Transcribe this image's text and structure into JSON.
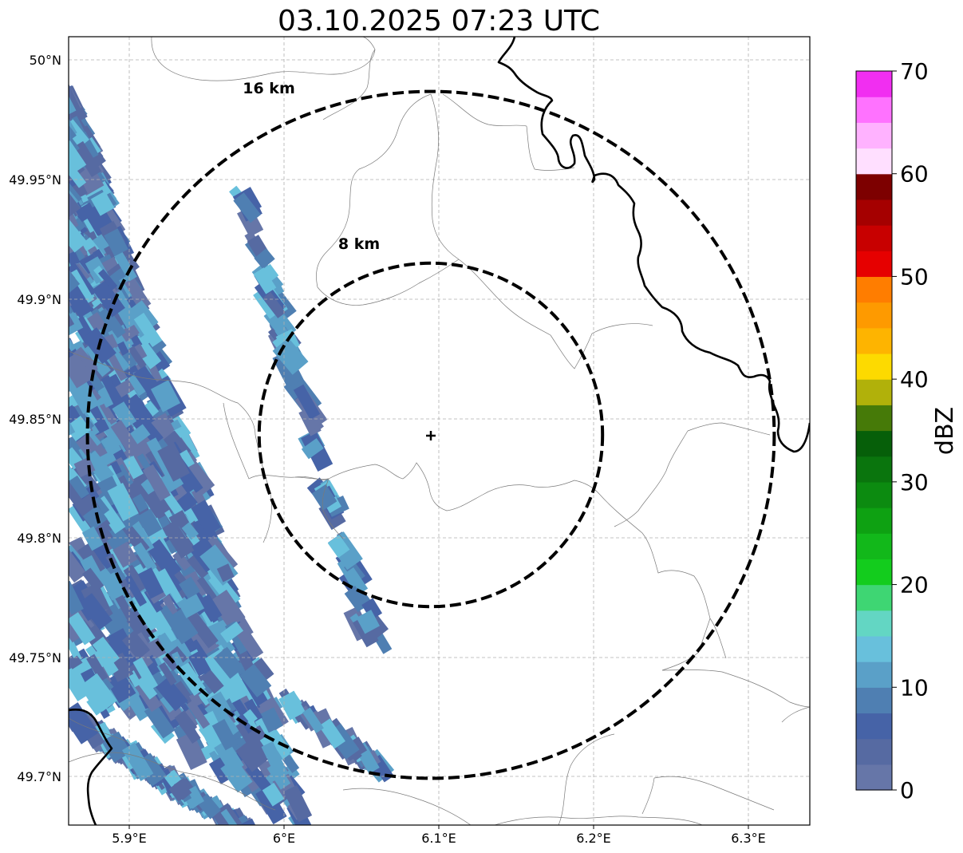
{
  "map": {
    "title": "03.10.2025 07:23 UTC",
    "lon_ticks": [
      "5.9°E",
      "6°E",
      "6.1°E",
      "6.2°E",
      "6.3°E"
    ],
    "lat_ticks": [
      "50°N",
      "49.95°N",
      "49.9°N",
      "49.85°N",
      "49.8°N",
      "49.75°N",
      "49.7°N"
    ],
    "rings": [
      {
        "label": "16 km",
        "radius_km": 16
      },
      {
        "label": "8 km",
        "radius_km": 8
      }
    ],
    "radar_site": {
      "symbol": "+"
    }
  },
  "colorbar": {
    "label": "dBZ",
    "min": 0,
    "max": 70,
    "ticks": [
      "0",
      "10",
      "20",
      "30",
      "40",
      "50",
      "60",
      "70"
    ],
    "colors": [
      "#6676a8",
      "#566aa2",
      "#4663a7",
      "#4f7fb2",
      "#5aa0c8",
      "#68c0dc",
      "#63d6c3",
      "#3ed673",
      "#13cc1d",
      "#12b81a",
      "#0ea112",
      "#0c8b10",
      "#0a750d",
      "#065f09",
      "#467a08",
      "#b1b10a",
      "#fdda00",
      "#feb400",
      "#fe9a00",
      "#ff7d00",
      "#e60000",
      "#c80000",
      "#a50000",
      "#7d0000",
      "#ffdfff",
      "#ffb2ff",
      "#ff72ff",
      "#f12ef1"
    ]
  },
  "colors": {
    "grid": "#b0b0b0",
    "border_thin": "#7a7a7a",
    "border_thick": "#000000",
    "ring": "#000000",
    "echo_palette": [
      "#6676a8",
      "#566aa2",
      "#4663a7",
      "#4f7fb2",
      "#5aa0c8",
      "#68c0dc"
    ]
  }
}
